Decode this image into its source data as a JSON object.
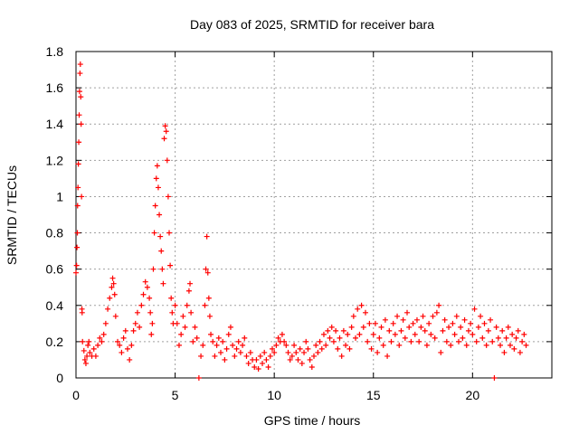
{
  "chart_data": {
    "type": "scatter",
    "title": "Day 083 of 2025, SRMTID for receiver bara",
    "xlabel": "GPS time / hours",
    "ylabel": "SRMTID / TECUs",
    "xlim": [
      0,
      24
    ],
    "ylim": [
      0,
      1.8
    ],
    "x_ticks": [
      0,
      5,
      10,
      15,
      20
    ],
    "x_tick_labels": [
      "0",
      "5",
      "10",
      "15",
      "20"
    ],
    "y_ticks": [
      0,
      0.2,
      0.4,
      0.6,
      0.8,
      1.0,
      1.2,
      1.4,
      1.6,
      1.8
    ],
    "y_tick_labels": [
      "0",
      "0.2",
      "0.4",
      "0.6",
      "0.8",
      "1",
      "1.2",
      "1.4",
      "1.6",
      "1.8"
    ],
    "grid": true,
    "marker": "+",
    "series": [
      {
        "name": "SRMTID",
        "color": "#ff0000",
        "points": [
          [
            0.0,
            0.58
          ],
          [
            0.03,
            0.62
          ],
          [
            0.05,
            0.72
          ],
          [
            0.07,
            0.8
          ],
          [
            0.08,
            0.95
          ],
          [
            0.1,
            1.05
          ],
          [
            0.12,
            1.18
          ],
          [
            0.14,
            1.3
          ],
          [
            0.16,
            1.45
          ],
          [
            0.18,
            1.58
          ],
          [
            0.2,
            1.68
          ],
          [
            0.22,
            1.73
          ],
          [
            0.24,
            1.55
          ],
          [
            0.26,
            1.4
          ],
          [
            0.28,
            1.0
          ],
          [
            0.3,
            0.38
          ],
          [
            0.31,
            0.36
          ],
          [
            0.33,
            0.2
          ],
          [
            0.4,
            0.15
          ],
          [
            0.45,
            0.1
          ],
          [
            0.5,
            0.08
          ],
          [
            0.55,
            0.12
          ],
          [
            0.6,
            0.18
          ],
          [
            0.65,
            0.2
          ],
          [
            0.7,
            0.14
          ],
          [
            0.8,
            0.12
          ],
          [
            0.9,
            0.16
          ],
          [
            1.0,
            0.12
          ],
          [
            1.1,
            0.18
          ],
          [
            1.2,
            0.22
          ],
          [
            1.3,
            0.2
          ],
          [
            1.4,
            0.24
          ],
          [
            1.5,
            0.3
          ],
          [
            1.6,
            0.38
          ],
          [
            1.7,
            0.44
          ],
          [
            1.8,
            0.5
          ],
          [
            1.85,
            0.55
          ],
          [
            1.9,
            0.52
          ],
          [
            1.95,
            0.46
          ],
          [
            2.0,
            0.34
          ],
          [
            2.1,
            0.2
          ],
          [
            2.2,
            0.18
          ],
          [
            2.3,
            0.14
          ],
          [
            2.4,
            0.22
          ],
          [
            2.5,
            0.26
          ],
          [
            2.6,
            0.16
          ],
          [
            2.7,
            0.1
          ],
          [
            2.8,
            0.18
          ],
          [
            2.9,
            0.26
          ],
          [
            3.0,
            0.3
          ],
          [
            3.1,
            0.36
          ],
          [
            3.2,
            0.28
          ],
          [
            3.3,
            0.4
          ],
          [
            3.4,
            0.46
          ],
          [
            3.5,
            0.53
          ],
          [
            3.6,
            0.5
          ],
          [
            3.7,
            0.44
          ],
          [
            3.75,
            0.36
          ],
          [
            3.8,
            0.24
          ],
          [
            3.85,
            0.3
          ],
          [
            3.9,
            0.6
          ],
          [
            3.95,
            0.8
          ],
          [
            4.0,
            0.95
          ],
          [
            4.05,
            1.1
          ],
          [
            4.1,
            1.17
          ],
          [
            4.15,
            1.05
          ],
          [
            4.2,
            0.9
          ],
          [
            4.25,
            0.78
          ],
          [
            4.3,
            0.7
          ],
          [
            4.35,
            0.6
          ],
          [
            4.4,
            0.52
          ],
          [
            4.45,
            1.32
          ],
          [
            4.5,
            1.39
          ],
          [
            4.55,
            1.36
          ],
          [
            4.6,
            1.2
          ],
          [
            4.65,
            1.0
          ],
          [
            4.7,
            0.8
          ],
          [
            4.75,
            0.62
          ],
          [
            4.8,
            0.44
          ],
          [
            4.85,
            0.36
          ],
          [
            4.9,
            0.3
          ],
          [
            5.0,
            0.4
          ],
          [
            5.1,
            0.3
          ],
          [
            5.2,
            0.18
          ],
          [
            5.3,
            0.24
          ],
          [
            5.4,
            0.34
          ],
          [
            5.5,
            0.28
          ],
          [
            5.6,
            0.4
          ],
          [
            5.7,
            0.48
          ],
          [
            5.75,
            0.52
          ],
          [
            5.8,
            0.36
          ],
          [
            5.9,
            0.2
          ],
          [
            6.0,
            0.28
          ],
          [
            6.1,
            0.22
          ],
          [
            6.2,
            0.0
          ],
          [
            6.3,
            0.12
          ],
          [
            6.4,
            0.18
          ],
          [
            6.5,
            0.4
          ],
          [
            6.55,
            0.6
          ],
          [
            6.6,
            0.78
          ],
          [
            6.65,
            0.58
          ],
          [
            6.7,
            0.44
          ],
          [
            6.75,
            0.34
          ],
          [
            6.8,
            0.24
          ],
          [
            6.9,
            0.2
          ],
          [
            7.0,
            0.12
          ],
          [
            7.1,
            0.18
          ],
          [
            7.2,
            0.22
          ],
          [
            7.3,
            0.14
          ],
          [
            7.4,
            0.2
          ],
          [
            7.5,
            0.1
          ],
          [
            7.6,
            0.16
          ],
          [
            7.7,
            0.24
          ],
          [
            7.8,
            0.28
          ],
          [
            7.9,
            0.18
          ],
          [
            8.0,
            0.12
          ],
          [
            8.1,
            0.16
          ],
          [
            8.2,
            0.2
          ],
          [
            8.3,
            0.14
          ],
          [
            8.4,
            0.18
          ],
          [
            8.5,
            0.22
          ],
          [
            8.6,
            0.12
          ],
          [
            8.7,
            0.08
          ],
          [
            8.8,
            0.14
          ],
          [
            8.9,
            0.1
          ],
          [
            9.0,
            0.06
          ],
          [
            9.1,
            0.1
          ],
          [
            9.2,
            0.05
          ],
          [
            9.3,
            0.12
          ],
          [
            9.4,
            0.08
          ],
          [
            9.5,
            0.14
          ],
          [
            9.6,
            0.1
          ],
          [
            9.7,
            0.06
          ],
          [
            9.8,
            0.12
          ],
          [
            9.9,
            0.16
          ],
          [
            10.0,
            0.14
          ],
          [
            10.1,
            0.18
          ],
          [
            10.2,
            0.22
          ],
          [
            10.3,
            0.2
          ],
          [
            10.4,
            0.24
          ],
          [
            10.5,
            0.2
          ],
          [
            10.6,
            0.18
          ],
          [
            10.7,
            0.14
          ],
          [
            10.8,
            0.1
          ],
          [
            10.9,
            0.12
          ],
          [
            11.0,
            0.18
          ],
          [
            11.1,
            0.14
          ],
          [
            11.2,
            0.1
          ],
          [
            11.3,
            0.16
          ],
          [
            11.4,
            0.08
          ],
          [
            11.5,
            0.14
          ],
          [
            11.6,
            0.2
          ],
          [
            11.7,
            0.16
          ],
          [
            11.8,
            0.1
          ],
          [
            11.9,
            0.06
          ],
          [
            12.0,
            0.12
          ],
          [
            12.1,
            0.18
          ],
          [
            12.2,
            0.14
          ],
          [
            12.3,
            0.2
          ],
          [
            12.4,
            0.16
          ],
          [
            12.5,
            0.24
          ],
          [
            12.6,
            0.18
          ],
          [
            12.7,
            0.26
          ],
          [
            12.8,
            0.22
          ],
          [
            12.9,
            0.28
          ],
          [
            13.0,
            0.2
          ],
          [
            13.1,
            0.26
          ],
          [
            13.2,
            0.16
          ],
          [
            13.3,
            0.22
          ],
          [
            13.4,
            0.12
          ],
          [
            13.5,
            0.26
          ],
          [
            13.6,
            0.18
          ],
          [
            13.7,
            0.24
          ],
          [
            13.8,
            0.16
          ],
          [
            13.9,
            0.28
          ],
          [
            14.0,
            0.34
          ],
          [
            14.1,
            0.22
          ],
          [
            14.2,
            0.38
          ],
          [
            14.3,
            0.24
          ],
          [
            14.4,
            0.4
          ],
          [
            14.5,
            0.28
          ],
          [
            14.6,
            0.36
          ],
          [
            14.7,
            0.2
          ],
          [
            14.8,
            0.3
          ],
          [
            14.9,
            0.16
          ],
          [
            15.0,
            0.24
          ],
          [
            15.1,
            0.3
          ],
          [
            15.2,
            0.14
          ],
          [
            15.3,
            0.22
          ],
          [
            15.4,
            0.28
          ],
          [
            15.5,
            0.18
          ],
          [
            15.6,
            0.32
          ],
          [
            15.7,
            0.12
          ],
          [
            15.8,
            0.26
          ],
          [
            15.9,
            0.2
          ],
          [
            16.0,
            0.3
          ],
          [
            16.1,
            0.24
          ],
          [
            16.2,
            0.34
          ],
          [
            16.3,
            0.18
          ],
          [
            16.4,
            0.26
          ],
          [
            16.5,
            0.32
          ],
          [
            16.6,
            0.22
          ],
          [
            16.7,
            0.36
          ],
          [
            16.8,
            0.28
          ],
          [
            16.9,
            0.2
          ],
          [
            17.0,
            0.3
          ],
          [
            17.1,
            0.24
          ],
          [
            17.2,
            0.32
          ],
          [
            17.3,
            0.2
          ],
          [
            17.4,
            0.28
          ],
          [
            17.5,
            0.34
          ],
          [
            17.6,
            0.26
          ],
          [
            17.7,
            0.18
          ],
          [
            17.8,
            0.3
          ],
          [
            17.9,
            0.24
          ],
          [
            18.0,
            0.34
          ],
          [
            18.1,
            0.22
          ],
          [
            18.2,
            0.36
          ],
          [
            18.3,
            0.4
          ],
          [
            18.4,
            0.14
          ],
          [
            18.5,
            0.26
          ],
          [
            18.6,
            0.32
          ],
          [
            18.7,
            0.2
          ],
          [
            18.8,
            0.28
          ],
          [
            18.9,
            0.18
          ],
          [
            19.0,
            0.3
          ],
          [
            19.1,
            0.24
          ],
          [
            19.2,
            0.34
          ],
          [
            19.3,
            0.2
          ],
          [
            19.4,
            0.28
          ],
          [
            19.5,
            0.22
          ],
          [
            19.6,
            0.32
          ],
          [
            19.7,
            0.18
          ],
          [
            19.8,
            0.26
          ],
          [
            19.9,
            0.3
          ],
          [
            20.0,
            0.24
          ],
          [
            20.1,
            0.38
          ],
          [
            20.2,
            0.2
          ],
          [
            20.3,
            0.28
          ],
          [
            20.4,
            0.34
          ],
          [
            20.5,
            0.22
          ],
          [
            20.6,
            0.3
          ],
          [
            20.7,
            0.18
          ],
          [
            20.8,
            0.26
          ],
          [
            20.9,
            0.32
          ],
          [
            21.0,
            0.2
          ],
          [
            21.1,
            0.0
          ],
          [
            21.2,
            0.28
          ],
          [
            21.3,
            0.22
          ],
          [
            21.4,
            0.18
          ],
          [
            21.5,
            0.26
          ],
          [
            21.6,
            0.14
          ],
          [
            21.7,
            0.22
          ],
          [
            21.8,
            0.28
          ],
          [
            21.9,
            0.18
          ],
          [
            22.0,
            0.24
          ],
          [
            22.1,
            0.16
          ],
          [
            22.2,
            0.22
          ],
          [
            22.3,
            0.26
          ],
          [
            22.4,
            0.14
          ],
          [
            22.5,
            0.2
          ],
          [
            22.6,
            0.24
          ],
          [
            22.7,
            0.18
          ]
        ]
      }
    ]
  },
  "colors": {
    "background": "#ffffff",
    "marker": "#ff0000",
    "grid": "#a0a0a0",
    "axis": "#000000"
  }
}
